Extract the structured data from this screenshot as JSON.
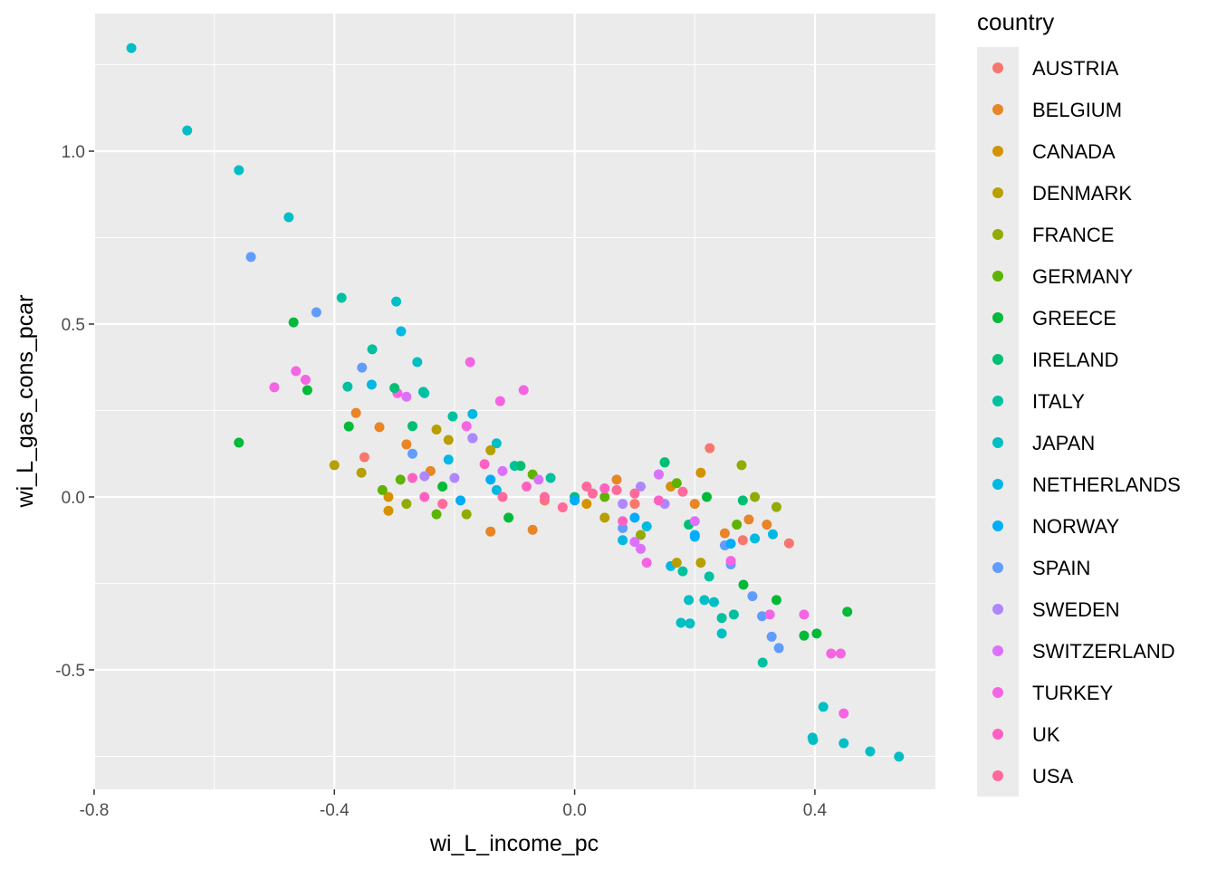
{
  "chart_data": {
    "type": "scatter",
    "xlabel": "wi_L_income_pc",
    "ylabel": "wi_L_gas_cons_pcar",
    "xlim": [
      -0.8,
      0.6
    ],
    "ylim": [
      -0.85,
      1.35
    ],
    "x_ticks": [
      -0.8,
      -0.4,
      0.0,
      0.4
    ],
    "x_tick_labels": [
      "-0.8",
      "-0.4",
      "0.0",
      "0.4"
    ],
    "y_ticks": [
      -0.5,
      0.0,
      0.5,
      1.0
    ],
    "y_tick_labels": [
      "-0.5",
      "0.0",
      "0.5",
      "1.0"
    ],
    "grid": true,
    "legend": {
      "title": "country",
      "placement": "right",
      "entries": [
        "AUSTRIA",
        "BELGIUM",
        "CANADA",
        "DENMARK",
        "FRANCE",
        "GERMANY",
        "GREECE",
        "IRELAND",
        "ITALY",
        "JAPAN",
        "NETHERLANDS",
        "NORWAY",
        "SPAIN",
        "SWEDEN",
        "SWITZERLAND",
        "TURKEY",
        "UK",
        "USA"
      ],
      "colors": [
        "#F8766D",
        "#E88526",
        "#D39200",
        "#B79F00",
        "#93AA00",
        "#5EB300",
        "#00BA38",
        "#00BF74",
        "#00C19F",
        "#00BFC4",
        "#00B9E3",
        "#00ADFA",
        "#619CFF",
        "#AE87FF",
        "#DB72FB",
        "#F564E3",
        "#FF61C3",
        "#FF699C"
      ]
    },
    "points": [
      [
        -0.738,
        1.298,
        9
      ],
      [
        -0.645,
        1.06,
        9
      ],
      [
        -0.559,
        0.945,
        9
      ],
      [
        -0.476,
        0.809,
        9
      ],
      [
        -0.297,
        0.565,
        9
      ],
      [
        -0.262,
        0.39,
        9
      ],
      [
        0.414,
        -0.607,
        9
      ],
      [
        0.396,
        -0.696,
        9
      ],
      [
        0.397,
        -0.703,
        9
      ],
      [
        0.448,
        -0.712,
        9
      ],
      [
        0.492,
        -0.736,
        9
      ],
      [
        0.54,
        -0.751,
        9
      ],
      [
        0.245,
        -0.395,
        9
      ],
      [
        0.19,
        -0.298,
        9
      ],
      [
        0.216,
        -0.298,
        9
      ],
      [
        0.232,
        -0.304,
        9
      ],
      [
        0.177,
        -0.364,
        9
      ],
      [
        0.192,
        -0.366,
        9
      ],
      [
        -0.25,
        0.3,
        9
      ],
      [
        -0.13,
        0.155,
        9
      ],
      [
        -0.388,
        0.576,
        8
      ],
      [
        -0.337,
        0.427,
        8
      ],
      [
        -0.378,
        0.319,
        8
      ],
      [
        -0.252,
        0.304,
        8
      ],
      [
        -0.203,
        0.233,
        8
      ],
      [
        0.313,
        -0.479,
        8
      ],
      [
        0.224,
        -0.23,
        8
      ],
      [
        0.18,
        -0.215,
        8
      ],
      [
        0.245,
        -0.35,
        8
      ],
      [
        0.265,
        -0.34,
        8
      ],
      [
        -0.1,
        0.09,
        8
      ],
      [
        0.15,
        0.1,
        8
      ],
      [
        -0.04,
        0.055,
        8
      ],
      [
        -0.539,
        0.694,
        12
      ],
      [
        -0.43,
        0.534,
        12
      ],
      [
        -0.354,
        0.374,
        12
      ],
      [
        0.34,
        -0.437,
        12
      ],
      [
        0.328,
        -0.404,
        12
      ],
      [
        0.296,
        -0.287,
        12
      ],
      [
        0.312,
        -0.345,
        12
      ],
      [
        0.26,
        -0.195,
        12
      ],
      [
        0.25,
        -0.14,
        12
      ],
      [
        -0.27,
        0.125,
        12
      ],
      [
        0.14,
        0.065,
        12
      ],
      [
        0.08,
        -0.09,
        12
      ],
      [
        -0.289,
        0.479,
        10
      ],
      [
        -0.338,
        0.325,
        10
      ],
      [
        -0.17,
        0.24,
        10
      ],
      [
        -0.21,
        0.108,
        10
      ],
      [
        -0.13,
        0.02,
        10
      ],
      [
        0.16,
        -0.2,
        10
      ],
      [
        0.3,
        -0.12,
        10
      ],
      [
        0.33,
        -0.108,
        10
      ],
      [
        0.12,
        -0.085,
        10
      ],
      [
        0.08,
        -0.125,
        10
      ],
      [
        0.2,
        -0.11,
        10
      ],
      [
        -0.468,
        0.505,
        6
      ],
      [
        -0.445,
        0.309,
        6
      ],
      [
        -0.559,
        0.157,
        6
      ],
      [
        -0.376,
        0.204,
        6
      ],
      [
        0.382,
        -0.401,
        6
      ],
      [
        0.403,
        -0.395,
        6
      ],
      [
        0.454,
        -0.332,
        6
      ],
      [
        0.336,
        -0.298,
        6
      ],
      [
        0.281,
        -0.254,
        6
      ],
      [
        -0.22,
        0.03,
        6
      ],
      [
        -0.11,
        -0.06,
        6
      ],
      [
        0.22,
        0.0,
        6
      ],
      [
        -0.5,
        0.317,
        15
      ],
      [
        -0.464,
        0.364,
        15
      ],
      [
        -0.448,
        0.339,
        15
      ],
      [
        -0.174,
        0.39,
        15
      ],
      [
        -0.085,
        0.309,
        15
      ],
      [
        -0.124,
        0.277,
        15
      ],
      [
        -0.295,
        0.3,
        15
      ],
      [
        0.427,
        -0.453,
        15
      ],
      [
        0.443,
        -0.453,
        15
      ],
      [
        0.448,
        -0.626,
        15
      ],
      [
        0.382,
        -0.34,
        15
      ],
      [
        0.325,
        -0.34,
        15
      ],
      [
        -0.18,
        0.205,
        15
      ],
      [
        0.12,
        -0.19,
        15
      ],
      [
        0.26,
        -0.185,
        15
      ],
      [
        0.225,
        0.141,
        0
      ],
      [
        0.357,
        -0.134,
        0
      ],
      [
        -0.35,
        0.115,
        0
      ],
      [
        0.28,
        -0.125,
        0
      ],
      [
        0.1,
        -0.02,
        0
      ],
      [
        -0.05,
        -0.01,
        0
      ],
      [
        -0.364,
        0.243,
        1
      ],
      [
        -0.325,
        0.202,
        1
      ],
      [
        -0.28,
        0.152,
        1
      ],
      [
        -0.24,
        0.075,
        1
      ],
      [
        -0.14,
        -0.1,
        1
      ],
      [
        -0.07,
        -0.095,
        1
      ],
      [
        0.25,
        -0.105,
        1
      ],
      [
        0.29,
        -0.065,
        1
      ],
      [
        0.32,
        -0.08,
        1
      ],
      [
        0.07,
        0.05,
        1
      ],
      [
        0.2,
        -0.02,
        1
      ],
      [
        -0.4,
        0.092,
        3
      ],
      [
        -0.355,
        0.07,
        3
      ],
      [
        -0.23,
        0.195,
        3
      ],
      [
        -0.21,
        0.165,
        3
      ],
      [
        -0.14,
        0.135,
        3
      ],
      [
        0.05,
        -0.06,
        3
      ],
      [
        0.17,
        -0.19,
        3
      ],
      [
        0.21,
        -0.19,
        3
      ],
      [
        0.278,
        0.092,
        4
      ],
      [
        0.336,
        -0.029,
        4
      ],
      [
        0.3,
        0.0,
        4
      ],
      [
        -0.28,
        -0.02,
        4
      ],
      [
        -0.18,
        -0.05,
        4
      ],
      [
        0.11,
        -0.11,
        4
      ],
      [
        -0.31,
        0.0,
        2
      ],
      [
        -0.31,
        -0.04,
        2
      ],
      [
        0.02,
        -0.02,
        2
      ],
      [
        0.16,
        0.03,
        2
      ],
      [
        0.21,
        0.07,
        2
      ],
      [
        -0.29,
        0.05,
        5
      ],
      [
        -0.32,
        0.02,
        5
      ],
      [
        -0.23,
        -0.05,
        5
      ],
      [
        -0.07,
        0.065,
        5
      ],
      [
        0.27,
        -0.08,
        5
      ],
      [
        0.17,
        0.04,
        5
      ],
      [
        0.05,
        0.0,
        5
      ],
      [
        -0.3,
        0.315,
        7
      ],
      [
        -0.27,
        0.205,
        7
      ],
      [
        -0.17,
        0.17,
        7
      ],
      [
        -0.09,
        0.09,
        7
      ],
      [
        0.15,
        0.1,
        7
      ],
      [
        0.28,
        -0.01,
        7
      ],
      [
        0.0,
        0.0,
        7
      ],
      [
        0.19,
        -0.08,
        7
      ],
      [
        -0.19,
        -0.01,
        11
      ],
      [
        -0.14,
        0.05,
        11
      ],
      [
        0.0,
        -0.01,
        11
      ],
      [
        0.1,
        -0.06,
        11
      ],
      [
        0.2,
        -0.115,
        11
      ],
      [
        0.26,
        -0.135,
        11
      ],
      [
        -0.25,
        0.06,
        13
      ],
      [
        -0.2,
        0.055,
        13
      ],
      [
        -0.17,
        0.17,
        13
      ],
      [
        0.08,
        -0.02,
        13
      ],
      [
        0.15,
        -0.02,
        13
      ],
      [
        0.11,
        0.03,
        13
      ],
      [
        -0.28,
        0.29,
        14
      ],
      [
        -0.12,
        0.075,
        14
      ],
      [
        -0.06,
        0.05,
        14
      ],
      [
        0.14,
        0.065,
        14
      ],
      [
        0.2,
        -0.07,
        14
      ],
      [
        0.1,
        -0.13,
        14
      ],
      [
        0.11,
        -0.15,
        14
      ],
      [
        -0.25,
        0.0,
        16
      ],
      [
        -0.27,
        0.055,
        16
      ],
      [
        -0.15,
        0.095,
        16
      ],
      [
        -0.08,
        0.03,
        16
      ],
      [
        0.05,
        0.025,
        16
      ],
      [
        0.08,
        -0.07,
        16
      ],
      [
        0.14,
        -0.01,
        16
      ],
      [
        -0.22,
        -0.02,
        17
      ],
      [
        -0.12,
        0.0,
        17
      ],
      [
        -0.02,
        -0.03,
        17
      ],
      [
        0.02,
        0.03,
        17
      ],
      [
        0.07,
        0.02,
        17
      ],
      [
        0.03,
        0.01,
        17
      ],
      [
        0.18,
        0.015,
        17
      ],
      [
        0.1,
        0.01,
        17
      ],
      [
        -0.05,
        0.0,
        17
      ]
    ]
  }
}
